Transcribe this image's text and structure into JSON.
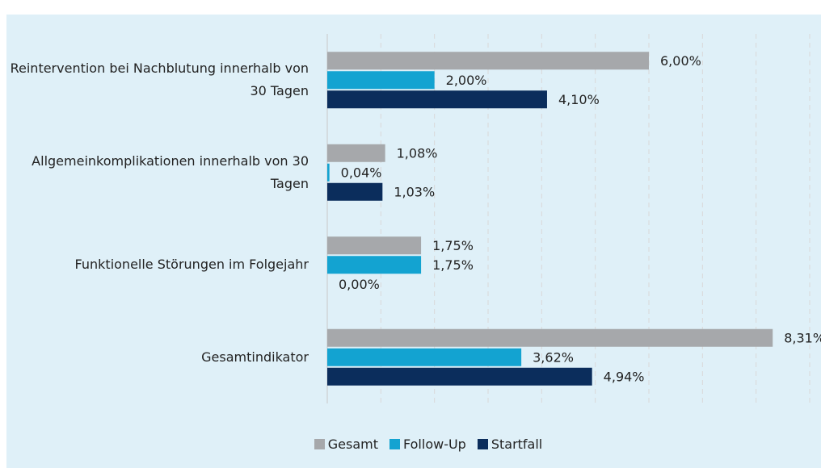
{
  "chart_data": {
    "type": "bar",
    "orientation": "horizontal",
    "categories": [
      "Reintervention bei Nachblutung innerhalb von 30 Tagen",
      "Allgemeinkomplikationen innerhalb von 30 Tagen",
      "Funktionelle Störungen im Folgejahr",
      "Gesamtindikator"
    ],
    "series": [
      {
        "name": "Gesamt",
        "color": "#a6a8ab",
        "values": [
          6.0,
          1.08,
          1.75,
          8.31
        ],
        "value_labels": [
          "6,00%",
          "1,08%",
          "1,75%",
          "8,31%"
        ]
      },
      {
        "name": "Follow-Up",
        "color": "#13a3d1",
        "values": [
          2.0,
          0.04,
          1.75,
          3.62
        ],
        "value_labels": [
          "2,00%",
          "0,04%",
          "1,75%",
          "3,62%"
        ]
      },
      {
        "name": "Startfall",
        "color": "#0b2d5c",
        "values": [
          4.1,
          1.03,
          0.0,
          4.94
        ],
        "value_labels": [
          "4,10%",
          "1,03%",
          "0,00%",
          "4,94%"
        ]
      }
    ],
    "xlim": [
      0,
      9
    ],
    "xticks": [
      0,
      1,
      2,
      3,
      4,
      5,
      6,
      7,
      8,
      9
    ],
    "grid": true,
    "legend": "bottom"
  }
}
